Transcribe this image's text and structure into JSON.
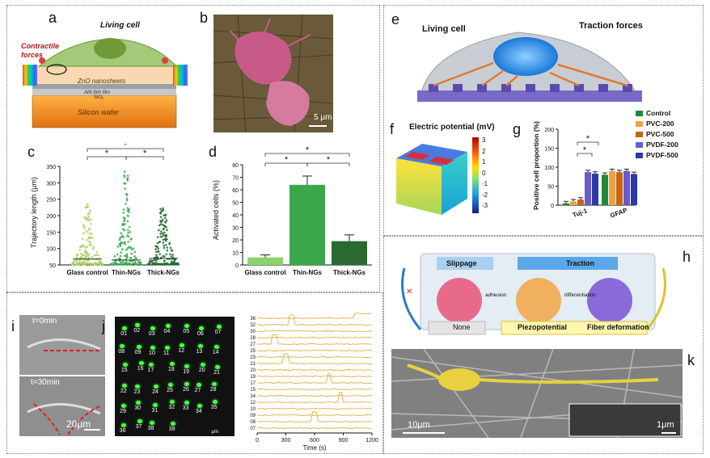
{
  "panel_letters": [
    "a",
    "b",
    "c",
    "d",
    "e",
    "f",
    "g",
    "h",
    "i",
    "j",
    "k"
  ],
  "panel_a": {
    "living_cell": "Living cell",
    "contractile_forces": "Contractile\nforces",
    "zno": "ZnO nanosheets",
    "aln": "AlN thin film",
    "sio2": "SiO₂",
    "silicon": "Silicon wafer"
  },
  "panel_b": {
    "scale": "5 μm"
  },
  "panel_c": {
    "ylabel": "Trajectory length (μm)",
    "yticks": [
      "50",
      "100",
      "150",
      "200",
      "250",
      "300",
      "350"
    ],
    "categories": [
      "Glass control",
      "Thin-NGs",
      "Thick-NGs"
    ],
    "sig": [
      "*",
      "*",
      "*"
    ]
  },
  "panel_d": {
    "ylabel": "Activated cells (%)",
    "yticks": [
      "0",
      "10",
      "20",
      "30",
      "40",
      "50",
      "60",
      "70",
      "80"
    ],
    "categories": [
      "Glass control",
      "Thin-NGs",
      "Thick-NGs"
    ],
    "sig": [
      "*",
      "*",
      "*"
    ]
  },
  "panel_e": {
    "living_cell": "Living cell",
    "traction": "Traction forces"
  },
  "panel_f": {
    "title": "Electric potential (mV)",
    "ticks": [
      "3",
      "2",
      "1",
      "0",
      "-1",
      "-2",
      "-3"
    ]
  },
  "panel_g": {
    "ylabel": "Positive cell proportion (%)",
    "yticks": [
      "0",
      "50",
      "100",
      "150",
      "200"
    ],
    "groups": [
      "Tuj-1",
      "GFAP"
    ],
    "legend": [
      "Control",
      "PVC-200",
      "PVC-500",
      "PVDF-200",
      "PVDF-500"
    ],
    "legend_colors": [
      "#1f8a3c",
      "#f0a040",
      "#c8641a",
      "#6a5acd",
      "#2a3aa8"
    ],
    "sig": [
      "*",
      "*"
    ]
  },
  "panel_h": {
    "slippage": "Slippage",
    "traction": "Traction",
    "adhesion": "adhesion",
    "differentiation": "differentiation",
    "none": "None",
    "piezopotential": "Piezopotential",
    "fiber_deformation": "Fiber deformation"
  },
  "panel_i": {
    "t0": "t=0min",
    "t30": "t=30min",
    "scale": "20μm"
  },
  "panel_j": {
    "cells": [
      "01",
      "02",
      "03",
      "04",
      "05",
      "06",
      "07",
      "08",
      "09",
      "10",
      "11",
      "12",
      "13",
      "14",
      "15",
      "16",
      "17",
      "18",
      "19",
      "20",
      "21",
      "22",
      "23",
      "24",
      "25",
      "26",
      "27",
      "28",
      "29",
      "30",
      "31",
      "32",
      "33",
      "34",
      "35",
      "36",
      "37",
      "38",
      "39"
    ],
    "trace_labels": [
      "36",
      "32",
      "30",
      "28",
      "27",
      "25",
      "23",
      "21",
      "20",
      "19",
      "17",
      "15",
      "14",
      "12",
      "10",
      "09",
      "08",
      "07"
    ],
    "xlabel": "Time (s)",
    "xticks": [
      "0",
      "300",
      "600",
      "900",
      "1200"
    ],
    "scale": "μm"
  },
  "panel_k": {
    "scale_main": "10μm",
    "scale_inset": "1μm"
  },
  "chart_data": [
    {
      "type": "scatter",
      "title": "",
      "ylabel": "Trajectory length (μm)",
      "categories": [
        "Glass control",
        "Thin-NGs",
        "Thick-NGs"
      ],
      "ylim": [
        50,
        350
      ],
      "median": [
        68,
        65,
        70
      ],
      "max": [
        250,
        340,
        225
      ]
    },
    {
      "type": "bar",
      "title": "",
      "ylabel": "Activated cells (%)",
      "categories": [
        "Glass control",
        "Thin-NGs",
        "Thick-NGs"
      ],
      "values": [
        6,
        64,
        19
      ],
      "errors": [
        2,
        7,
        5
      ],
      "ylim": [
        0,
        80
      ]
    },
    {
      "type": "bar",
      "title": "",
      "ylabel": "Positive cell proportion (%)",
      "categories": [
        "Tuj-1",
        "GFAP"
      ],
      "ylim": [
        0,
        200
      ],
      "series": [
        {
          "name": "Control",
          "values": [
            5,
            80
          ]
        },
        {
          "name": "PVC-200",
          "values": [
            10,
            90
          ]
        },
        {
          "name": "PVC-500",
          "values": [
            15,
            87
          ]
        },
        {
          "name": "PVDF-200",
          "values": [
            87,
            90
          ]
        },
        {
          "name": "PVDF-500",
          "values": [
            83,
            82
          ]
        }
      ]
    }
  ]
}
